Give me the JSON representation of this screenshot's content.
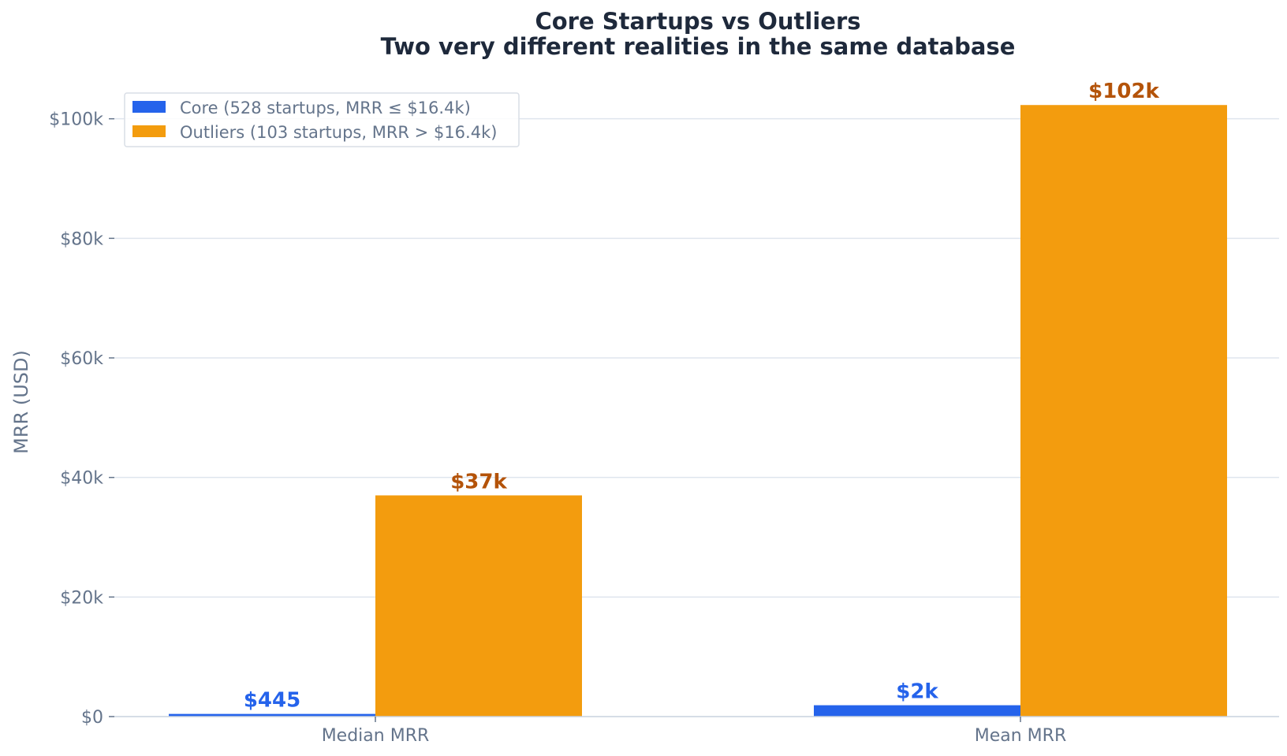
{
  "chart_data": {
    "type": "bar",
    "title": "Core Startups vs Outliers",
    "subtitle": "Two very different realities in the same database",
    "xlabel": "",
    "ylabel": "MRR (USD)",
    "ylim": [
      0,
      108000
    ],
    "grid": true,
    "legend_position": "top-left",
    "categories": [
      "Median MRR",
      "Mean MRR"
    ],
    "yticks": [
      {
        "value": 0,
        "label": "$0"
      },
      {
        "value": 20000,
        "label": "$20k"
      },
      {
        "value": 40000,
        "label": "$40k"
      },
      {
        "value": 60000,
        "label": "$60k"
      },
      {
        "value": 80000,
        "label": "$80k"
      },
      {
        "value": 100000,
        "label": "$100k"
      }
    ],
    "series": [
      {
        "name": "Core (528 startups, MRR ≤ $16.4k)",
        "color": "#2563eb",
        "label_color": "#2563eb",
        "values": [
          445,
          1900
        ],
        "data_labels": [
          "$445",
          "$2k"
        ]
      },
      {
        "name": "Outliers (103 startups, MRR > $16.4k)",
        "color": "#f39c0e",
        "label_color": "#b45309",
        "values": [
          37000,
          102300
        ],
        "data_labels": [
          "$37k",
          "$102k"
        ]
      }
    ]
  },
  "colors": {
    "title": "#1e293b",
    "axis_text": "#64748b",
    "grid": "#dfe5ee",
    "axis_line": "#c9d2de",
    "legend_border": "#d9dee6"
  }
}
